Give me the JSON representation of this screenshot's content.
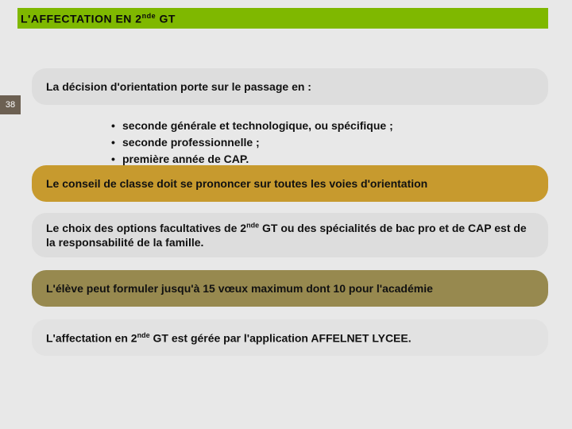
{
  "title": {
    "prefix": "L'AFFECTATION EN 2",
    "sup": "nde",
    "suffix": " GT"
  },
  "page_number": "38",
  "heading": "La décision d'orientation porte sur le passage en :",
  "bullets": [
    "seconde générale et technologique, ou spécifique ;",
    "seconde professionnelle ;",
    "première année de CAP."
  ],
  "yellow": "Le conseil de classe doit se prononcer sur toutes les voies d'orientation",
  "grey2": {
    "a": "Le choix des options facultatives de 2",
    "sup": "nde",
    "b": " GT ou des spécialités de bac pro et de CAP est de la responsabilité de la famille."
  },
  "olive": "L'élève peut formuler jusqu'à 15 vœux maximum dont 10 pour l'académie",
  "grey3": {
    "a": "L'affectation en 2",
    "sup": "nde",
    "b": " GT est gérée par l'application AFFELNET LYCEE."
  }
}
